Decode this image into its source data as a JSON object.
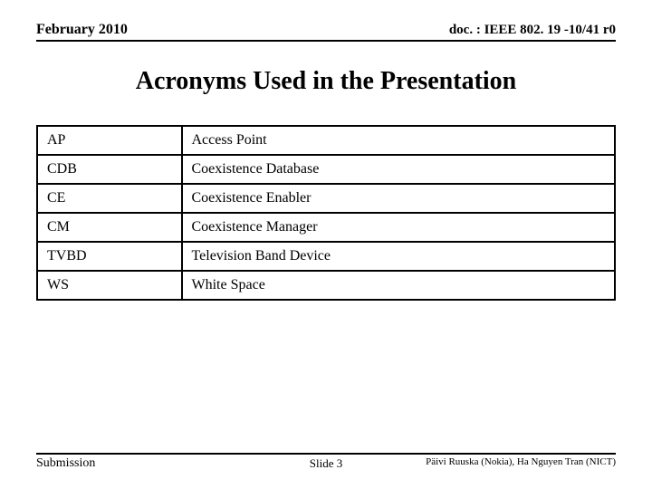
{
  "header": {
    "date": "February 2010",
    "docId": "doc. : IEEE 802. 19 -10/41 r0"
  },
  "title": "Acronyms Used in the Presentation",
  "table": {
    "rows": [
      {
        "acronym": "AP",
        "meaning": "Access Point"
      },
      {
        "acronym": "CDB",
        "meaning": "Coexistence Database"
      },
      {
        "acronym": "CE",
        "meaning": "Coexistence Enabler"
      },
      {
        "acronym": "CM",
        "meaning": "Coexistence Manager"
      },
      {
        "acronym": "TVBD",
        "meaning": "Television Band Device"
      },
      {
        "acronym": "WS",
        "meaning": "White Space"
      }
    ],
    "col1_width_pct": 25,
    "col2_width_pct": 75,
    "border_color": "#000000",
    "cell_font_size": 16
  },
  "footer": {
    "left": "Submission",
    "center": "Slide 3",
    "right": "Päivi Ruuska (Nokia), Ha Nguyen Tran (NICT)"
  },
  "colors": {
    "background": "#ffffff",
    "text": "#000000",
    "rule": "#000000"
  },
  "typography": {
    "family": "Times New Roman",
    "header_size": 16,
    "title_size": 28,
    "footer_size": 12
  }
}
